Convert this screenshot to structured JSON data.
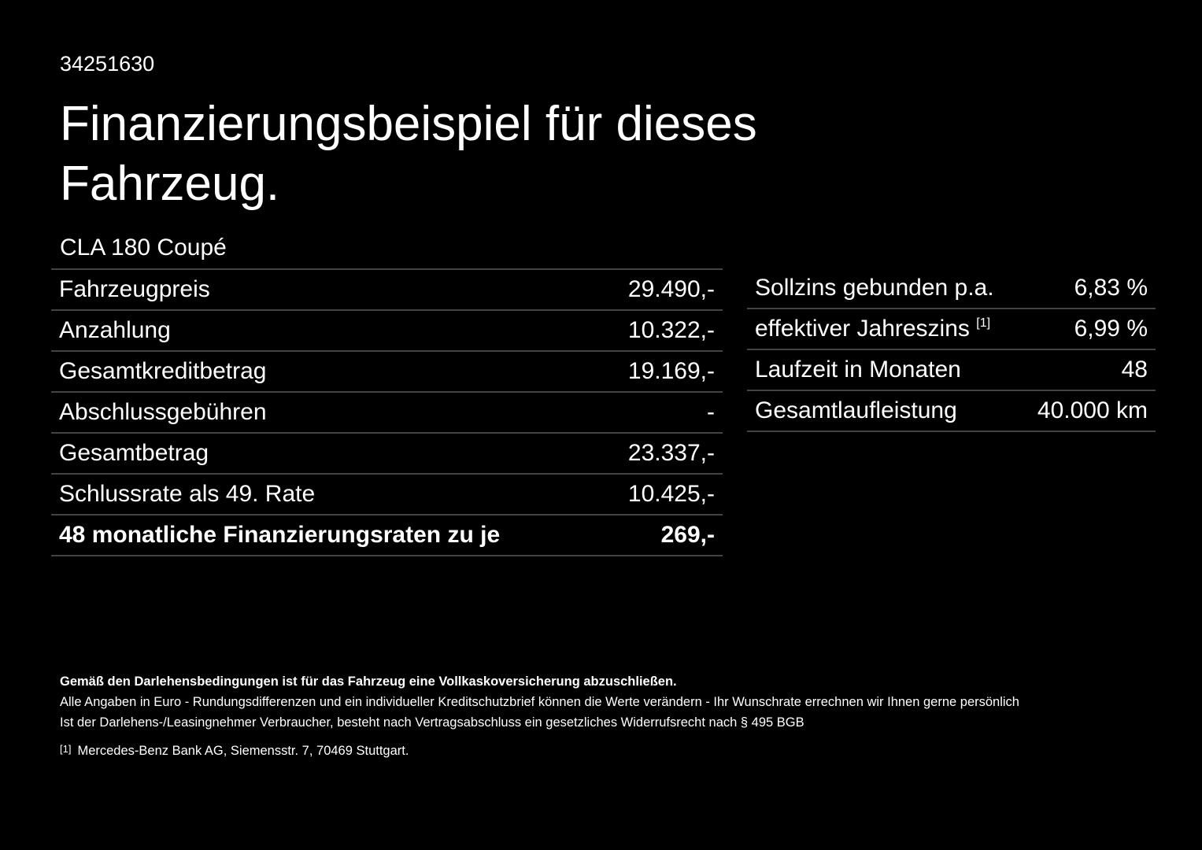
{
  "header": {
    "id": "34251630",
    "title_line1": "Finanzierungsbeispiel für dieses",
    "title_line2": "Fahrzeug."
  },
  "model": "CLA 180 Coupé",
  "left_table": {
    "rows": [
      [
        "Fahrzeugpreis",
        "29.490,-"
      ],
      [
        "Anzahlung",
        "10.322,-"
      ],
      [
        "Gesamtkreditbetrag",
        "19.169,-"
      ],
      [
        "Abschlussgebühren",
        "-"
      ],
      [
        "Gesamtbetrag",
        "23.337,-"
      ],
      [
        "Schlussrate als 49. Rate",
        "10.425,-"
      ],
      [
        "48 monatliche Finanzierungsraten zu je",
        "269,-"
      ]
    ]
  },
  "right_table": {
    "rows": [
      [
        "Sollzins gebunden p.a.",
        "6,83 %"
      ],
      [
        "effektiver Jahreszins",
        "6,99 %"
      ],
      [
        "Laufzeit in Monaten",
        "48"
      ],
      [
        "Gesamtlaufleistung",
        "40.000 km"
      ]
    ],
    "footnote_ref": "[1]"
  },
  "footer": {
    "bold_note": "Gemäß den Darlehensbedingungen ist für das Fahrzeug eine Vollkaskoversicherung abzuschließen.",
    "line1": "Alle Angaben in Euro - Rundungsdifferenzen und ein individueller Kreditschutzbrief können die Werte verändern - Ihr Wunschrate errechnen wir Ihnen gerne persönlich",
    "line2": "Ist der Darlehens-/Leasingnehmer Verbraucher, besteht nach Vertragsabschluss ein gesetzliches Widerrufsrecht nach § 495 BGB",
    "footnote_mark": "[1]",
    "footnote_text": "Mercedes-Benz Bank AG, Siemensstr. 7, 70469 Stuttgart."
  }
}
